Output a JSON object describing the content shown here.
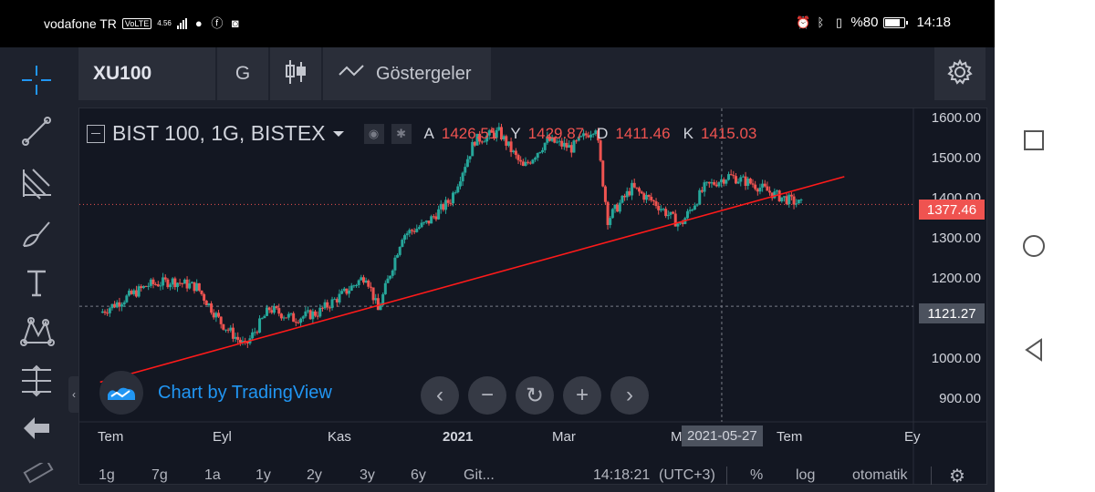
{
  "status_bar": {
    "carrier": "vodafone TR",
    "volte": "VoLTE",
    "network_speed": "4.56",
    "battery_percent": "%80",
    "battery_level": 0.8,
    "time": "14:18",
    "icons": [
      "chat-icon",
      "facebook-icon",
      "instagram-icon",
      "alarm-icon",
      "bluetooth-icon",
      "vibrate-icon",
      "battery-icon"
    ]
  },
  "left_toolbar": {
    "tools": [
      "crosshair-icon",
      "trend-line-icon",
      "fib-icon",
      "brush-icon",
      "text-icon",
      "pattern-icon",
      "measure-icon",
      "back-arrow-icon",
      "ruler-icon"
    ]
  },
  "top_toolbar": {
    "symbol": "XU100",
    "timeframe": "G",
    "chart_type_icon": "candles-icon",
    "indicators_label": "Göstergeler",
    "settings_icon": "gear-icon"
  },
  "legend": {
    "title": "BIST 100, 1G, BISTEX",
    "o_key": "A",
    "o_val": "1426.51",
    "h_key": "Y",
    "h_val": "1429.87",
    "l_key": "D",
    "l_val": "1411.46",
    "c_key": "K",
    "c_val": "1415.03"
  },
  "price_axis": {
    "labels": [
      "1600.00",
      "1500.00",
      "1400.00",
      "1300.00",
      "1200.00",
      "1000.00",
      "900.00"
    ],
    "current_price": "1377.46",
    "crosshair_price": "1121.27"
  },
  "time_axis": {
    "labels": [
      "Tem",
      "Eyl",
      "Kas",
      "2021",
      "Mar",
      "M",
      "Tem",
      "Ey"
    ],
    "crosshair_date": "2021-05-27"
  },
  "watermark": "Chart by TradingView",
  "zoom_controls": [
    "chevron-left-icon",
    "zoom-out-icon",
    "reset-icon",
    "zoom-in-icon",
    "chevron-right-icon"
  ],
  "bottom_bar": {
    "ranges": [
      "1g",
      "7g",
      "1a",
      "1y",
      "2y",
      "3y",
      "6y",
      "Git..."
    ],
    "clock": "14:18:21",
    "timezone": "(UTC+3)",
    "percent": "%",
    "log": "log",
    "auto": "otomatik"
  },
  "colors": {
    "up": "#26a69a",
    "down": "#ef5350",
    "trendline": "#ff1a1a",
    "background": "#131722"
  },
  "chart_data": {
    "type": "candlestick",
    "title": "BIST 100, 1G, BISTEX",
    "ylim": [
      830,
      1620
    ],
    "trendline": {
      "from": {
        "x": "2020-06-01",
        "y": 930
      },
      "to": {
        "x": "2021-08-06",
        "y": 1448
      }
    },
    "series": [
      {
        "x": "2020-06-01",
        "close": 1105
      },
      {
        "x": "2020-06-15",
        "close": 1140
      },
      {
        "x": "2020-06-29",
        "close": 1175
      },
      {
        "x": "2020-07-13",
        "close": 1185
      },
      {
        "x": "2020-07-27",
        "close": 1170
      },
      {
        "x": "2020-08-10",
        "close": 1080
      },
      {
        "x": "2020-08-24",
        "close": 1020
      },
      {
        "x": "2020-09-07",
        "close": 1115
      },
      {
        "x": "2020-09-21",
        "close": 1090
      },
      {
        "x": "2020-10-05",
        "close": 1105
      },
      {
        "x": "2020-10-19",
        "close": 1150
      },
      {
        "x": "2020-11-02",
        "close": 1200
      },
      {
        "x": "2020-11-09",
        "close": 1110
      },
      {
        "x": "2020-11-23",
        "close": 1300
      },
      {
        "x": "2020-12-07",
        "close": 1330
      },
      {
        "x": "2020-12-21",
        "close": 1390
      },
      {
        "x": "2021-01-04",
        "close": 1540
      },
      {
        "x": "2021-01-18",
        "close": 1560
      },
      {
        "x": "2021-02-01",
        "close": 1470
      },
      {
        "x": "2021-02-15",
        "close": 1540
      },
      {
        "x": "2021-03-01",
        "close": 1520
      },
      {
        "x": "2021-03-15",
        "close": 1575
      },
      {
        "x": "2021-03-22",
        "close": 1340
      },
      {
        "x": "2021-04-05",
        "close": 1420
      },
      {
        "x": "2021-04-19",
        "close": 1380
      },
      {
        "x": "2021-05-03",
        "close": 1325
      },
      {
        "x": "2021-05-17",
        "close": 1420
      },
      {
        "x": "2021-05-31",
        "close": 1450
      },
      {
        "x": "2021-06-14",
        "close": 1430
      },
      {
        "x": "2021-06-28",
        "close": 1400
      },
      {
        "x": "2021-07-12",
        "close": 1378
      }
    ]
  }
}
